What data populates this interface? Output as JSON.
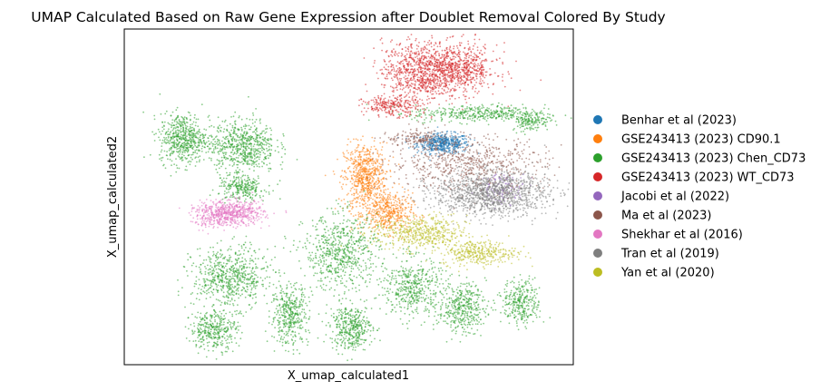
{
  "chart_data": {
    "type": "scatter",
    "title": "UMAP Calculated Based on Raw Gene Expression after Doublet Removal Colored By Study",
    "xlabel": "X_umap_calculated1",
    "ylabel": "X_umap_calculated2",
    "xticks": [],
    "yticks": [],
    "grid": false,
    "legend_position": "right, outside plot",
    "series": [
      {
        "name": "Benhar et al (2023)",
        "color": "#1f77b4",
        "blobs": [
          {
            "x": 12.5,
            "y": 3.4,
            "rx": 1.1,
            "ry": 0.4,
            "n": 500
          }
        ]
      },
      {
        "name": "GSE243413 (2023) CD90.1",
        "color": "#ff7f0e",
        "blobs": [
          {
            "x": 9.2,
            "y": 2.0,
            "rx": 0.9,
            "ry": 1.4,
            "n": 700
          },
          {
            "x": 10.2,
            "y": 0.6,
            "rx": 1.0,
            "ry": 0.8,
            "n": 400
          }
        ]
      },
      {
        "name": "GSE243413 (2023) Chen_CD73",
        "color": "#2ca02c",
        "blobs": [
          {
            "x": 1.5,
            "y": 3.6,
            "rx": 1.0,
            "ry": 1.0,
            "n": 550
          },
          {
            "x": 4.0,
            "y": 3.3,
            "rx": 1.4,
            "ry": 1.1,
            "n": 650
          },
          {
            "x": 4.0,
            "y": 1.6,
            "rx": 1.0,
            "ry": 0.5,
            "n": 250
          },
          {
            "x": 3.5,
            "y": -2.0,
            "rx": 1.6,
            "ry": 1.2,
            "n": 650
          },
          {
            "x": 2.8,
            "y": -4.1,
            "rx": 1.0,
            "ry": 0.8,
            "n": 350
          },
          {
            "x": 6.0,
            "y": -3.5,
            "rx": 0.8,
            "ry": 1.2,
            "n": 400
          },
          {
            "x": 8.2,
            "y": -1.0,
            "rx": 1.6,
            "ry": 1.5,
            "n": 650
          },
          {
            "x": 8.6,
            "y": -4.0,
            "rx": 0.9,
            "ry": 0.9,
            "n": 400
          },
          {
            "x": 11.2,
            "y": -2.4,
            "rx": 1.2,
            "ry": 1.2,
            "n": 450
          },
          {
            "x": 13.3,
            "y": -3.2,
            "rx": 1.0,
            "ry": 1.0,
            "n": 400
          },
          {
            "x": 15.8,
            "y": -3.0,
            "rx": 0.8,
            "ry": 0.9,
            "n": 300
          },
          {
            "x": 14.0,
            "y": 4.6,
            "rx": 2.8,
            "ry": 0.35,
            "n": 400
          },
          {
            "x": 16.2,
            "y": 4.3,
            "rx": 0.8,
            "ry": 0.4,
            "n": 150
          }
        ]
      },
      {
        "name": "GSE243413 (2023) WT_CD73",
        "color": "#d62728",
        "blobs": [
          {
            "x": 11.5,
            "y": 6.3,
            "rx": 1.6,
            "ry": 1.2,
            "n": 800
          },
          {
            "x": 13.2,
            "y": 6.4,
            "rx": 1.6,
            "ry": 1.0,
            "n": 650
          },
          {
            "x": 10.3,
            "y": 4.9,
            "rx": 1.2,
            "ry": 0.4,
            "n": 250
          }
        ]
      },
      {
        "name": "Jacobi et al (2022)",
        "color": "#9467bd",
        "blobs": [
          {
            "x": 15.0,
            "y": 1.6,
            "rx": 1.0,
            "ry": 0.6,
            "n": 120
          }
        ]
      },
      {
        "name": "Ma et al (2023)",
        "color": "#8c564b",
        "blobs": [
          {
            "x": 13.5,
            "y": 2.6,
            "rx": 3.3,
            "ry": 1.1,
            "n": 650
          },
          {
            "x": 11.5,
            "y": 3.6,
            "rx": 1.4,
            "ry": 0.3,
            "n": 150
          }
        ]
      },
      {
        "name": "Shekhar et al (2016)",
        "color": "#e377c2",
        "blobs": [
          {
            "x": 3.7,
            "y": 0.6,
            "rx": 1.2,
            "ry": 0.5,
            "n": 500
          },
          {
            "x": 2.7,
            "y": 0.5,
            "rx": 0.9,
            "ry": 0.5,
            "n": 200
          }
        ]
      },
      {
        "name": "Tran et al (2019)",
        "color": "#7f7f7f",
        "blobs": [
          {
            "x": 14.5,
            "y": 1.4,
            "rx": 2.4,
            "ry": 0.9,
            "n": 1200
          }
        ]
      },
      {
        "name": "Yan et al (2020)",
        "color": "#bcbd22",
        "blobs": [
          {
            "x": 11.5,
            "y": -0.2,
            "rx": 2.0,
            "ry": 0.7,
            "n": 500
          },
          {
            "x": 14.0,
            "y": -1.0,
            "rx": 1.6,
            "ry": 0.5,
            "n": 350
          }
        ]
      }
    ]
  }
}
